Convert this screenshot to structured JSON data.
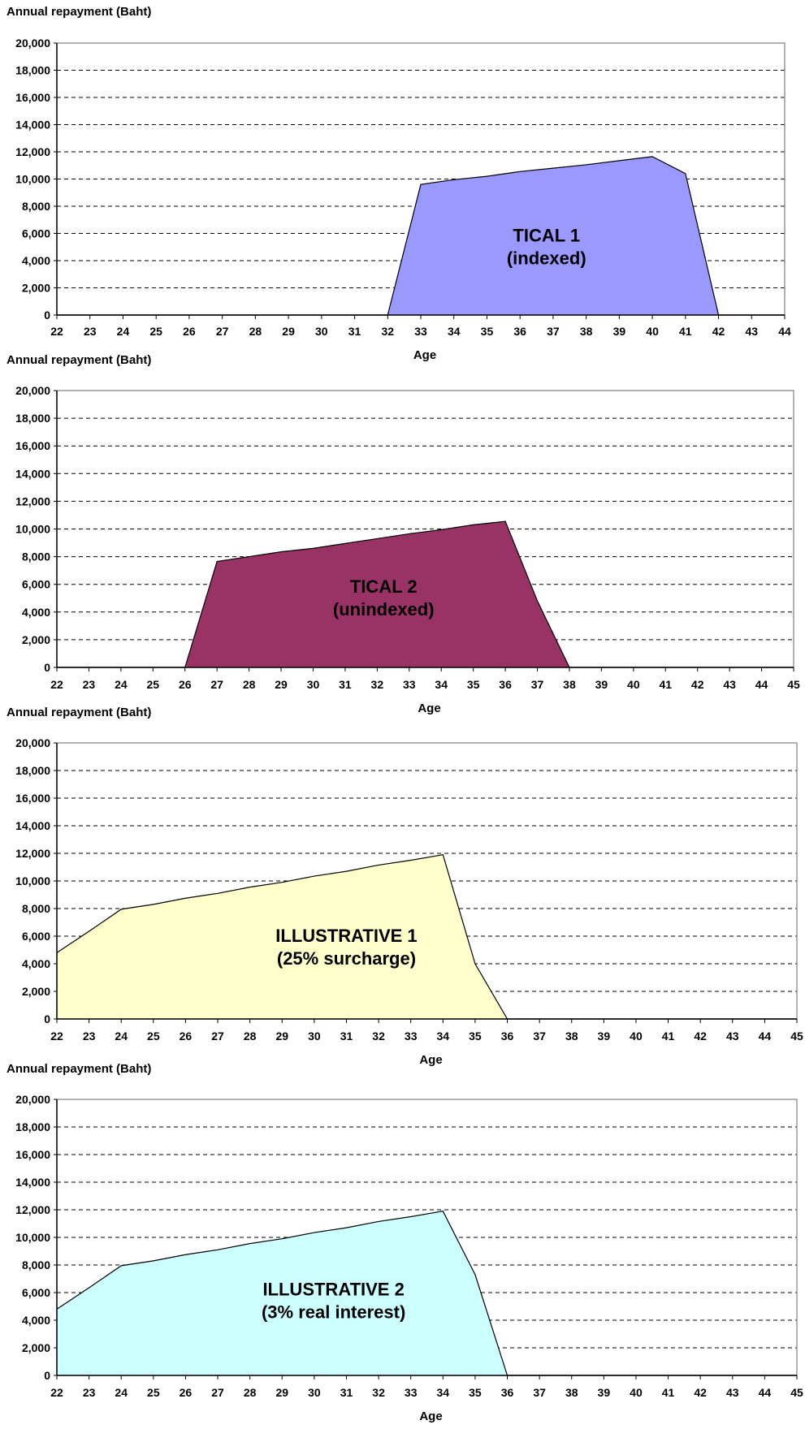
{
  "chart_data": [
    {
      "type": "area",
      "ylabel": "Annual repayment (Baht)",
      "xlabel": "Age",
      "ylim": [
        0,
        20000
      ],
      "yticks": [
        "0",
        "2,000",
        "4,000",
        "6,000",
        "8,000",
        "10,000",
        "12,000",
        "14,000",
        "16,000",
        "18,000",
        "20,000"
      ],
      "xlim": [
        22,
        44
      ],
      "xticks": [
        "22",
        "23",
        "24",
        "25",
        "26",
        "27",
        "28",
        "29",
        "30",
        "31",
        "32",
        "33",
        "34",
        "35",
        "36",
        "37",
        "38",
        "39",
        "40",
        "41",
        "42",
        "43",
        "44"
      ],
      "grid": "dashed horizontal",
      "fill": "#9999ff",
      "annotation": [
        "TICAL 1",
        "(indexed)"
      ],
      "x": [
        22,
        32,
        33,
        34,
        35,
        36,
        37,
        38,
        39,
        40,
        41,
        42,
        44
      ],
      "y": [
        0,
        0,
        9600,
        9950,
        10200,
        10550,
        10800,
        11050,
        11350,
        11650,
        10400,
        0,
        0
      ]
    },
    {
      "type": "area",
      "ylabel": "Annual repayment (Baht)",
      "xlabel": "Age",
      "ylim": [
        0,
        20000
      ],
      "yticks": [
        "0",
        "2,000",
        "4,000",
        "6,000",
        "8,000",
        "10,000",
        "12,000",
        "14,000",
        "16,000",
        "18,000",
        "20,000"
      ],
      "xlim": [
        22,
        45
      ],
      "xticks": [
        "22",
        "23",
        "24",
        "25",
        "26",
        "27",
        "28",
        "29",
        "30",
        "31",
        "32",
        "33",
        "34",
        "35",
        "36",
        "37",
        "38",
        "39",
        "40",
        "41",
        "42",
        "43",
        "44",
        "45"
      ],
      "grid": "dashed horizontal",
      "fill": "#993366",
      "annotation": [
        "TICAL 2",
        "(unindexed)"
      ],
      "x": [
        22,
        26,
        27,
        28,
        29,
        30,
        31,
        32,
        33,
        34,
        35,
        36,
        37,
        38,
        45
      ],
      "y": [
        0,
        0,
        7650,
        8000,
        8350,
        8600,
        8950,
        9300,
        9650,
        9950,
        10300,
        10550,
        4800,
        0,
        0
      ]
    },
    {
      "type": "area",
      "ylabel": "Annual repayment (Baht)",
      "xlabel": "Age",
      "ylim": [
        0,
        20000
      ],
      "yticks": [
        "0",
        "2,000",
        "4,000",
        "6,000",
        "8,000",
        "10,000",
        "12,000",
        "14,000",
        "16,000",
        "18,000",
        "20,000"
      ],
      "xlim": [
        22,
        45
      ],
      "xticks": [
        "22",
        "23",
        "24",
        "25",
        "26",
        "27",
        "28",
        "29",
        "30",
        "31",
        "32",
        "33",
        "34",
        "35",
        "36",
        "37",
        "38",
        "39",
        "40",
        "41",
        "42",
        "43",
        "44",
        "45"
      ],
      "grid": "dashed horizontal",
      "fill": "#ffffcc",
      "annotation": [
        "ILLUSTRATIVE 1",
        "(25% surcharge)"
      ],
      "x": [
        22,
        23,
        24,
        25,
        26,
        27,
        28,
        29,
        30,
        31,
        32,
        33,
        34,
        35,
        36,
        45
      ],
      "y": [
        4800,
        6350,
        7950,
        8300,
        8750,
        9100,
        9550,
        9900,
        10350,
        10700,
        11150,
        11500,
        11900,
        4000,
        0,
        0
      ]
    },
    {
      "type": "area",
      "ylabel": "Annual repayment (Baht)",
      "xlabel": "Age",
      "ylim": [
        0,
        20000
      ],
      "yticks": [
        "0",
        "2,000",
        "4,000",
        "6,000",
        "8,000",
        "10,000",
        "12,000",
        "14,000",
        "16,000",
        "18,000",
        "20,000"
      ],
      "xlim": [
        22,
        45
      ],
      "xticks": [
        "22",
        "23",
        "24",
        "25",
        "26",
        "27",
        "28",
        "29",
        "30",
        "31",
        "32",
        "33",
        "34",
        "35",
        "36",
        "37",
        "38",
        "39",
        "40",
        "41",
        "42",
        "43",
        "44",
        "45"
      ],
      "grid": "dashed horizontal",
      "fill": "#ccffff",
      "annotation": [
        "ILLUSTRATIVE 2",
        "(3% real interest)"
      ],
      "x": [
        22,
        23,
        24,
        25,
        26,
        27,
        28,
        29,
        30,
        31,
        32,
        33,
        34,
        35,
        36,
        45
      ],
      "y": [
        4800,
        6350,
        7950,
        8300,
        8750,
        9100,
        9550,
        9900,
        10350,
        10700,
        11150,
        11500,
        11900,
        7300,
        0,
        0
      ]
    }
  ]
}
